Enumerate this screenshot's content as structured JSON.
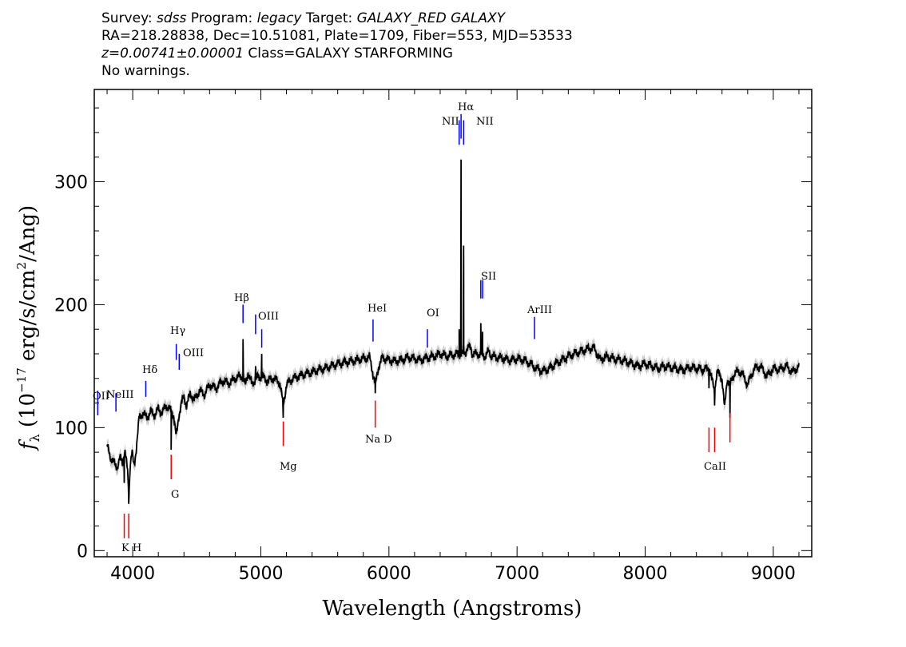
{
  "header": {
    "line1": {
      "survey_key": "Survey: ",
      "survey_val": "sdss",
      "program_key": " Program: ",
      "program_val": "legacy",
      "target_key": " Target: ",
      "target_val": "GALAXY_RED GALAXY"
    },
    "line2": "RA=218.28838, Dec=10.51081, Plate=1709, Fiber=553, MJD=53533",
    "line3": {
      "z": "z=0.00741±0.00001",
      "class": " Class=GALAXY STARFORMING"
    },
    "line4": "No warnings."
  },
  "chart_data": {
    "type": "line",
    "xlabel": "Wavelength (Angstroms)",
    "ylabel": "f",
    "ylabel_sub": "λ",
    "ylabel_units_pre": " (10",
    "ylabel_units_exp1": "−17",
    "ylabel_units_mid": " erg/s/cm",
    "ylabel_units_exp2": "2",
    "ylabel_units_post": "/Ang)",
    "xlim": [
      3700,
      9300
    ],
    "ylim": [
      -5,
      375
    ],
    "xticks": [
      4000,
      5000,
      6000,
      7000,
      8000,
      9000
    ],
    "yticks": [
      0,
      100,
      200,
      300
    ],
    "series_color": "#000000",
    "error_color": "#b4b4b4",
    "spectrum": [
      [
        3800,
        85
      ],
      [
        3830,
        75
      ],
      [
        3860,
        70
      ],
      [
        3880,
        68
      ],
      [
        3900,
        75
      ],
      [
        3920,
        72
      ],
      [
        3940,
        80
      ],
      [
        3960,
        65
      ],
      [
        3970,
        42
      ],
      [
        3980,
        70
      ],
      [
        3995,
        80
      ],
      [
        4010,
        68
      ],
      [
        4030,
        85
      ],
      [
        4050,
        108
      ],
      [
        4080,
        112
      ],
      [
        4110,
        108
      ],
      [
        4140,
        113
      ],
      [
        4170,
        110
      ],
      [
        4200,
        115
      ],
      [
        4230,
        112
      ],
      [
        4260,
        118
      ],
      [
        4290,
        115
      ],
      [
        4320,
        110
      ],
      [
        4340,
        92
      ],
      [
        4360,
        110
      ],
      [
        4380,
        120
      ],
      [
        4400,
        125
      ],
      [
        4420,
        118
      ],
      [
        4450,
        128
      ],
      [
        4480,
        122
      ],
      [
        4520,
        130
      ],
      [
        4560,
        127
      ],
      [
        4600,
        135
      ],
      [
        4650,
        132
      ],
      [
        4700,
        138
      ],
      [
        4750,
        136
      ],
      [
        4800,
        140
      ],
      [
        4850,
        142
      ],
      [
        4880,
        135
      ],
      [
        4900,
        145
      ],
      [
        4930,
        135
      ],
      [
        4960,
        140
      ],
      [
        5007,
        142
      ],
      [
        5050,
        138
      ],
      [
        5100,
        140
      ],
      [
        5150,
        136
      ],
      [
        5175,
        118
      ],
      [
        5200,
        135
      ],
      [
        5250,
        140
      ],
      [
        5300,
        142
      ],
      [
        5350,
        144
      ],
      [
        5400,
        145
      ],
      [
        5450,
        147
      ],
      [
        5500,
        148
      ],
      [
        5550,
        150
      ],
      [
        5600,
        152
      ],
      [
        5650,
        153
      ],
      [
        5700,
        154
      ],
      [
        5750,
        155
      ],
      [
        5800,
        156
      ],
      [
        5850,
        157
      ],
      [
        5893,
        135
      ],
      [
        5920,
        150
      ],
      [
        5950,
        157
      ],
      [
        6000,
        155
      ],
      [
        6050,
        154
      ],
      [
        6100,
        155
      ],
      [
        6150,
        157
      ],
      [
        6200,
        156
      ],
      [
        6250,
        155
      ],
      [
        6300,
        157
      ],
      [
        6350,
        158
      ],
      [
        6400,
        160
      ],
      [
        6450,
        158
      ],
      [
        6500,
        159
      ],
      [
        6550,
        160
      ],
      [
        6580,
        160
      ],
      [
        6600,
        162
      ],
      [
        6610,
        165
      ],
      [
        6640,
        165
      ],
      [
        6650,
        160
      ],
      [
        6700,
        160
      ],
      [
        6750,
        158
      ],
      [
        6780,
        162
      ],
      [
        6800,
        158
      ],
      [
        6850,
        157
      ],
      [
        6900,
        156
      ],
      [
        6950,
        155
      ],
      [
        7000,
        156
      ],
      [
        7050,
        155
      ],
      [
        7100,
        152
      ],
      [
        7150,
        148
      ],
      [
        7200,
        146
      ],
      [
        7250,
        148
      ],
      [
        7300,
        152
      ],
      [
        7350,
        155
      ],
      [
        7400,
        158
      ],
      [
        7450,
        160
      ],
      [
        7500,
        162
      ],
      [
        7550,
        164
      ],
      [
        7600,
        165
      ],
      [
        7650,
        155
      ],
      [
        7700,
        158
      ],
      [
        7750,
        156
      ],
      [
        7800,
        155
      ],
      [
        7850,
        154
      ],
      [
        7900,
        152
      ],
      [
        7950,
        150
      ],
      [
        8000,
        152
      ],
      [
        8050,
        150
      ],
      [
        8100,
        148
      ],
      [
        8150,
        150
      ],
      [
        8200,
        149
      ],
      [
        8250,
        148
      ],
      [
        8300,
        147
      ],
      [
        8350,
        149
      ],
      [
        8400,
        148
      ],
      [
        8450,
        147
      ],
      [
        8500,
        148
      ],
      [
        8542,
        130
      ],
      [
        8560,
        145
      ],
      [
        8580,
        143
      ],
      [
        8600,
        140
      ],
      [
        8620,
        115
      ],
      [
        8640,
        140
      ],
      [
        8662,
        135
      ],
      [
        8700,
        145
      ],
      [
        8750,
        145
      ],
      [
        8800,
        135
      ],
      [
        8850,
        148
      ],
      [
        8900,
        150
      ],
      [
        8950,
        142
      ],
      [
        9000,
        148
      ],
      [
        9050,
        147
      ],
      [
        9100,
        150
      ],
      [
        9150,
        145
      ],
      [
        9200,
        150
      ]
    ],
    "peaks": [
      {
        "x": 4861,
        "y": 172
      },
      {
        "x": 4959,
        "y": 150
      },
      {
        "x": 5007,
        "y": 160
      },
      {
        "x": 6548,
        "y": 180
      },
      {
        "x": 6563,
        "y": 318
      },
      {
        "x": 6583,
        "y": 248
      },
      {
        "x": 6717,
        "y": 185
      },
      {
        "x": 6731,
        "y": 178
      }
    ],
    "absorption_dips": [
      {
        "x": 3934,
        "y": 55
      },
      {
        "x": 3969,
        "y": 38
      },
      {
        "x": 4300,
        "y": 82
      },
      {
        "x": 5175,
        "y": 108
      },
      {
        "x": 5893,
        "y": 128
      },
      {
        "x": 8542,
        "y": 118
      },
      {
        "x": 8662,
        "y": 108
      },
      {
        "x": 8498,
        "y": 132
      }
    ],
    "emission_lines": [
      {
        "label": "OII",
        "x": 3727,
        "y0": 110,
        "y1": 130
      },
      {
        "label": "NeIII",
        "x": 3869,
        "y0": 113,
        "y1": 128
      },
      {
        "label": "Hδ",
        "x": 4102,
        "y0": 125,
        "y1": 138
      },
      {
        "label": "Hγ",
        "x": 4340,
        "y0": 155,
        "y1": 168
      },
      {
        "label": "OIII",
        "x": 4363,
        "y0": 147,
        "y1": 160
      },
      {
        "label": "Hβ",
        "x": 4861,
        "y0": 185,
        "y1": 200
      },
      {
        "label": "OIII",
        "x": 4959,
        "y0": 176,
        "y1": 192
      },
      {
        "label": "OIII",
        "x": 5007,
        "y0": 165,
        "y1": 180
      },
      {
        "label": "HeI",
        "x": 5876,
        "y0": 170,
        "y1": 188
      },
      {
        "label": "OI",
        "x": 6300,
        "y0": 165,
        "y1": 180
      },
      {
        "label": "NII",
        "x": 6548,
        "y0": 330,
        "y1": 350
      },
      {
        "label": "Hα",
        "x": 6563,
        "y0": 335,
        "y1": 355
      },
      {
        "label": "NII",
        "x": 6583,
        "y0": 330,
        "y1": 350
      },
      {
        "label": "SII",
        "x": 6717,
        "y0": 205,
        "y1": 220
      },
      {
        "label": "SII",
        "x": 6731,
        "y0": 205,
        "y1": 220
      },
      {
        "label": "ArIII",
        "x": 7136,
        "y0": 172,
        "y1": 190
      }
    ],
    "absorption_lines": [
      {
        "label": "K",
        "x": 3934,
        "y0": 10,
        "y1": 30
      },
      {
        "label": "H",
        "x": 3969,
        "y0": 10,
        "y1": 30
      },
      {
        "label": "G",
        "x": 4300,
        "y0": 58,
        "y1": 78
      },
      {
        "label": "Mg",
        "x": 5175,
        "y0": 85,
        "y1": 105
      },
      {
        "label": "Na D",
        "x": 5893,
        "y0": 100,
        "y1": 122
      },
      {
        "label": "CaII",
        "x": 8498,
        "y0": 80,
        "y1": 100
      },
      {
        "label": "CaII",
        "x": 8542,
        "y0": 80,
        "y1": 100
      },
      {
        "label": "CaII",
        "x": 8662,
        "y0": 88,
        "y1": 112
      }
    ],
    "emission_line_color": "#0000ff",
    "absorption_line_color": "#ff0000",
    "labels": {
      "oii": "OII",
      "neiii": "NeIII",
      "hdelta": "Hδ",
      "hgamma": "Hγ",
      "oiii_a": "OIII",
      "hbeta": "Hβ",
      "oiii_b": "OIII",
      "hei": "HeI",
      "oi": "OI",
      "nii_a": "NII",
      "halpha": "Hα",
      "nii_b": "NII",
      "sii": "SII",
      "ariii": "ArIII",
      "kh": "K H",
      "g": "G",
      "mg": "Mg",
      "nad": "Na D",
      "caii": "CaII"
    }
  }
}
